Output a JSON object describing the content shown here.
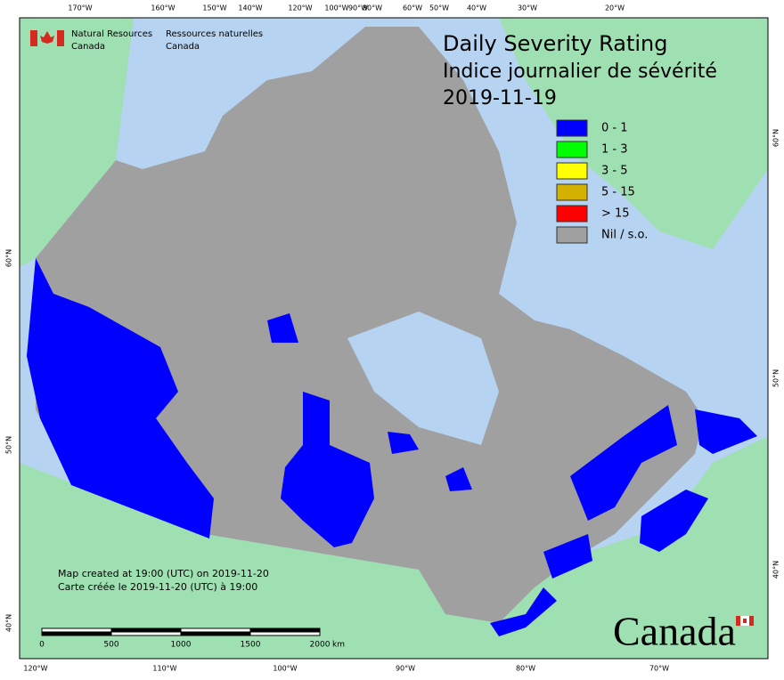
{
  "header": {
    "org_en": [
      "Natural Resources",
      "Canada"
    ],
    "org_fr": [
      "Ressources naturelles",
      "Canada"
    ],
    "title": "Daily Severity Rating",
    "subtitle": "Indice journalier de sévérité",
    "date": "2019-11-19"
  },
  "legend": [
    {
      "label": "0 - 1",
      "color": "#0000ff"
    },
    {
      "label": "1 - 3",
      "color": "#00ff00"
    },
    {
      "label": "3 - 5",
      "color": "#ffff00"
    },
    {
      "label": "5 - 15",
      "color": "#d4b000"
    },
    {
      "label": "> 15",
      "color": "#ff0000"
    },
    {
      "label": "Nil / s.o.",
      "color": "#a0a0a0"
    }
  ],
  "top_labels": [
    "170°W",
    "160°W",
    "150°W",
    "140°W",
    "120°W",
    "100°W",
    "90°W",
    "80°W",
    "60°W",
    "50°W",
    "40°W",
    "30°W",
    "20°W"
  ],
  "bottom_labels": [
    "120°W",
    "110°W",
    "100°W",
    "90°W",
    "80°W",
    "70°W"
  ],
  "left_labels": [
    "60°N",
    "50°N",
    "40°N"
  ],
  "right_labels": [
    "60°N",
    "50°N",
    "40°N"
  ],
  "notes": [
    "Map created at 19:00 (UTC) on 2019-11-20",
    "Carte créée le 2019-11-20 (UTC) à 19:00"
  ],
  "scale_bar": {
    "labels": [
      "0",
      "500",
      "1000",
      "1500",
      "2000"
    ],
    "unit": "km"
  },
  "wordmark": "Canada"
}
